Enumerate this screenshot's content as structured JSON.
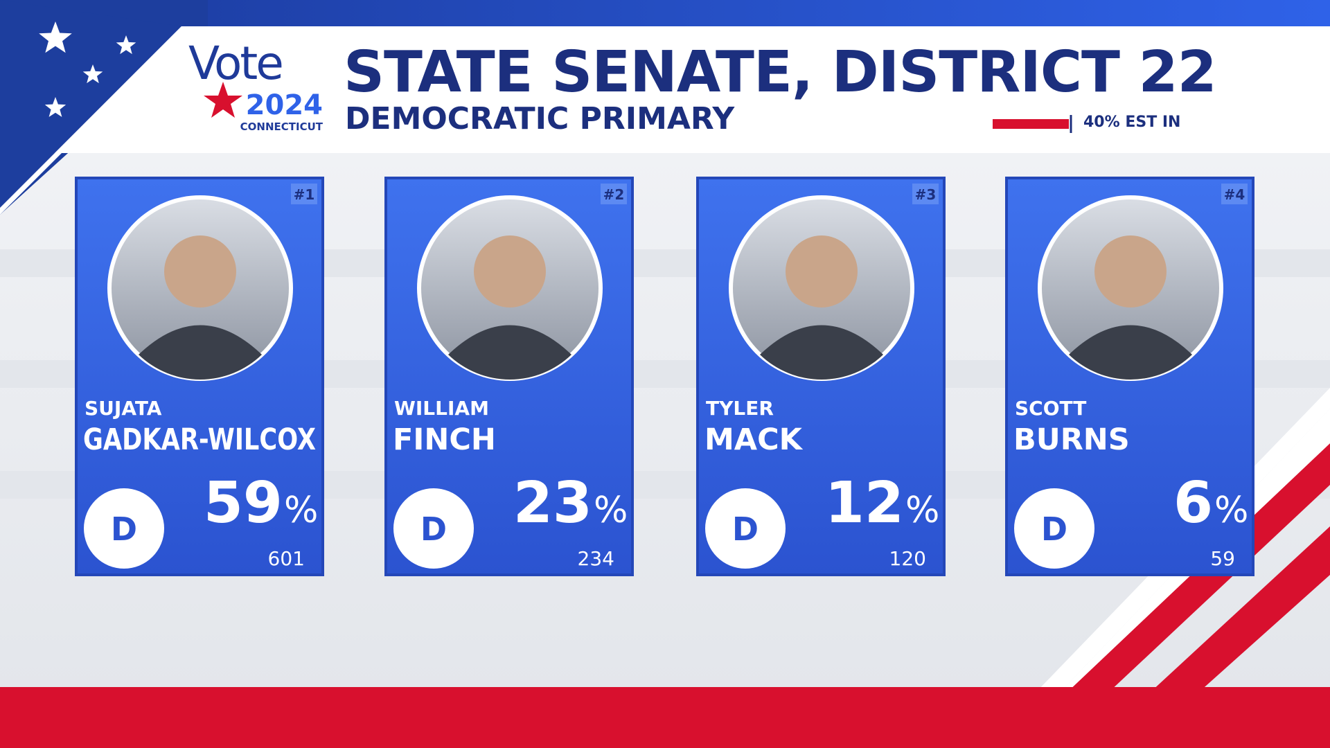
{
  "logo": {
    "word": "Vote",
    "year": "2024",
    "state": "CONNECTICUT"
  },
  "header": {
    "title": "STATE SENATE, DISTRICT 22",
    "subtitle": "DEMOCRATIC PRIMARY"
  },
  "reporting": {
    "value": 40,
    "label": "40% EST IN"
  },
  "candidates": [
    {
      "rank": "#1",
      "first_name": "SUJATA",
      "last_name": "GADKAR-WILCOX",
      "party": "D",
      "percent": 59,
      "percent_sign": "%",
      "votes": 601
    },
    {
      "rank": "#2",
      "first_name": "WILLIAM",
      "last_name": "FINCH",
      "party": "D",
      "percent": 23,
      "percent_sign": "%",
      "votes": 234
    },
    {
      "rank": "#3",
      "first_name": "TYLER",
      "last_name": "MACK",
      "party": "D",
      "percent": 12,
      "percent_sign": "%",
      "votes": 120
    },
    {
      "rank": "#4",
      "first_name": "SCOTT",
      "last_name": "BURNS",
      "party": "D",
      "percent": 6,
      "percent_sign": "%",
      "votes": 59
    }
  ]
}
